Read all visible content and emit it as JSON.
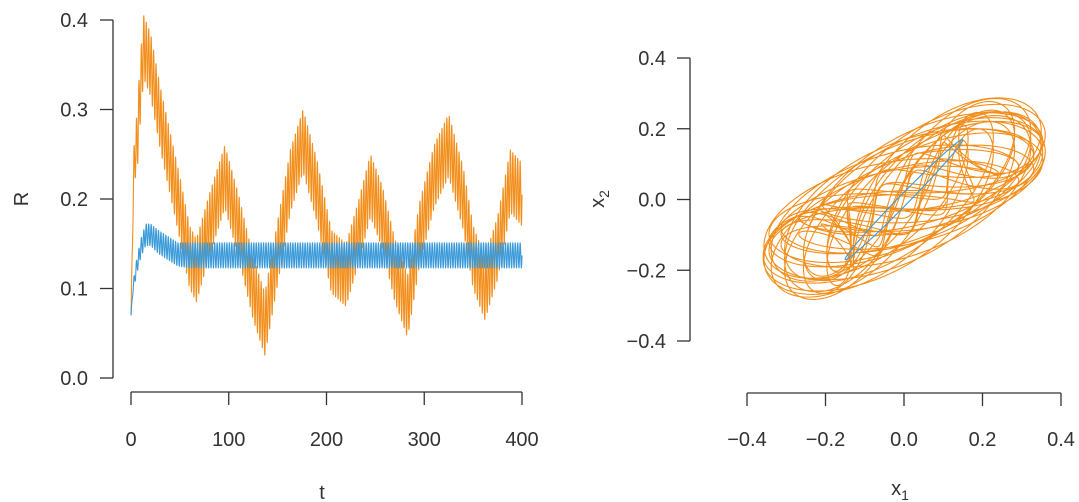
{
  "colors": {
    "orange": "#F28E1B",
    "blue": "#3A9AD9",
    "axis": "#333333"
  },
  "chart_data": [
    {
      "type": "line",
      "title": "",
      "xlabel": "t",
      "ylabel": "R",
      "xlim": [
        0,
        400
      ],
      "ylim": [
        0,
        0.42
      ],
      "xticks": [
        "0",
        "100",
        "200",
        "300",
        "400"
      ],
      "yticks": [
        "0.0",
        "0.1",
        "0.2",
        "0.3",
        "0.4"
      ],
      "grid": false,
      "series": [
        {
          "color": "orange",
          "oscillation": "fast",
          "envelope_t": [
            0,
            3,
            6,
            10,
            13,
            20,
            30,
            40,
            50,
            60,
            67,
            80,
            96,
            110,
            125,
            137,
            150,
            163,
            176,
            190,
            205,
            220,
            232,
            245,
            257,
            270,
            283,
            295,
            310,
            325,
            340,
            350,
            362,
            375,
            388,
            400
          ],
          "envelope_center": [
            0.07,
            0.24,
            0.26,
            0.33,
            0.37,
            0.35,
            0.29,
            0.24,
            0.19,
            0.135,
            0.12,
            0.17,
            0.225,
            0.17,
            0.1,
            0.06,
            0.14,
            0.22,
            0.265,
            0.21,
            0.13,
            0.115,
            0.16,
            0.215,
            0.18,
            0.12,
            0.08,
            0.16,
            0.225,
            0.26,
            0.2,
            0.135,
            0.1,
            0.145,
            0.22,
            0.205
          ],
          "oscillation_amplitude": 0.035
        },
        {
          "color": "blue",
          "oscillation": "fast",
          "envelope_t": [
            0,
            2,
            5,
            10,
            15,
            20,
            28,
            38,
            48,
            60,
            400
          ],
          "envelope_center": [
            0.07,
            0.1,
            0.12,
            0.145,
            0.16,
            0.16,
            0.152,
            0.145,
            0.138,
            0.137,
            0.137
          ],
          "oscillation_amplitude": [
            0.0,
            0.005,
            0.008,
            0.01,
            0.012,
            0.012,
            0.013,
            0.013,
            0.013,
            0.014,
            0.014
          ]
        }
      ]
    },
    {
      "type": "line",
      "title": "",
      "xlabel": "x",
      "xlabel_sub": "1",
      "ylabel": "x",
      "ylabel_sub": "2",
      "xlim": [
        -0.4,
        0.4
      ],
      "ylim": [
        -0.4,
        0.4
      ],
      "xticks": [
        "−0.4",
        "−0.2",
        "0.0",
        "0.2",
        "0.4"
      ],
      "yticks": [
        "−0.4",
        "−0.2",
        "0.0",
        "0.2",
        "0.4"
      ],
      "grid": false,
      "series": [
        {
          "color": "orange",
          "kind": "quasi-periodic trajectory",
          "range_x": [
            -0.36,
            0.36
          ],
          "range_y": [
            -0.36,
            0.35
          ]
        },
        {
          "color": "blue",
          "kind": "limit cycle",
          "range_x": [
            -0.15,
            0.15
          ],
          "range_y": [
            -0.17,
            0.17
          ]
        }
      ]
    }
  ]
}
